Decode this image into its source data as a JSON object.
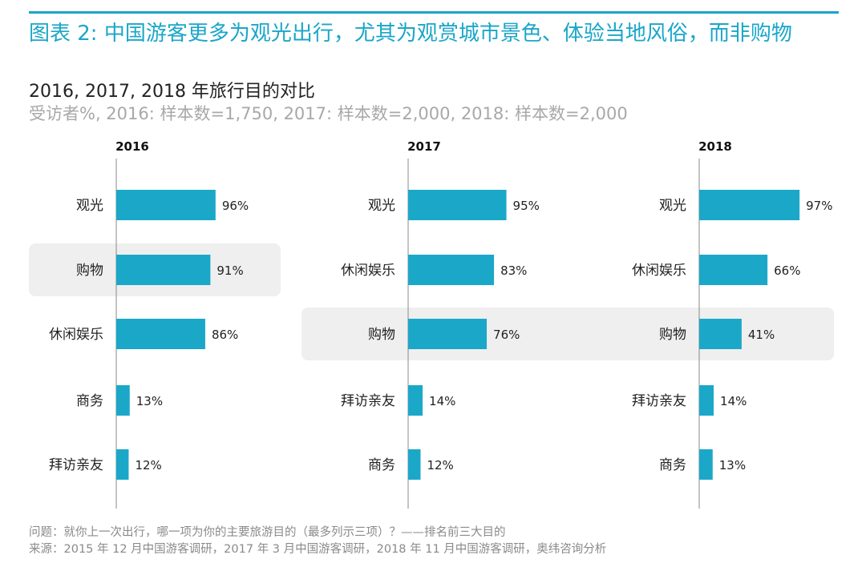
{
  "title": "图表 2: 中国游客更多为观光出行，尤其为观赏城市景色、体验当地风俗，而非购物",
  "subtitle": "2016, 2017, 2018 年旅行目的对比",
  "sample_note": "受访者%, 2016: 样本数=1,750, 2017: 样本数=2,000, 2018: 样本数=2,000",
  "footnote_question": "问题：就你上一次出行，哪一项为你的主要旅游目的（最多列示三项）？——排名前三大目的",
  "footnote_source": "来源：2015 年 12 月中国游客调研，2017 年 3 月中国游客调研，2018 年 11 月中国游客调研，奥纬咨询分析",
  "colors": {
    "bar": "#1ba8c8",
    "highlight_bg": "#efefef",
    "axis": "#888888",
    "accent": "#1aa6c9"
  },
  "chart_data": [
    {
      "type": "bar",
      "orientation": "horizontal",
      "title": "2016",
      "categories": [
        "观光",
        "购物",
        "休闲娱乐",
        "商务",
        "拜访亲友"
      ],
      "values": [
        96,
        91,
        86,
        13,
        12
      ],
      "labels": [
        "96%",
        "91%",
        "86%",
        "13%",
        "12%"
      ],
      "highlight": "购物",
      "xlim": [
        0,
        100
      ]
    },
    {
      "type": "bar",
      "orientation": "horizontal",
      "title": "2017",
      "categories": [
        "观光",
        "休闲娱乐",
        "购物",
        "拜访亲友",
        "商务"
      ],
      "values": [
        95,
        83,
        76,
        14,
        12
      ],
      "labels": [
        "95%",
        "83%",
        "76%",
        "14%",
        "12%"
      ],
      "highlight": "购物",
      "xlim": [
        0,
        100
      ]
    },
    {
      "type": "bar",
      "orientation": "horizontal",
      "title": "2018",
      "categories": [
        "观光",
        "休闲娱乐",
        "购物",
        "拜访亲友",
        "商务"
      ],
      "values": [
        97,
        66,
        41,
        14,
        13
      ],
      "labels": [
        "97%",
        "66%",
        "41%",
        "14%",
        "13%"
      ],
      "highlight": "购物",
      "xlim": [
        0,
        100
      ]
    }
  ]
}
